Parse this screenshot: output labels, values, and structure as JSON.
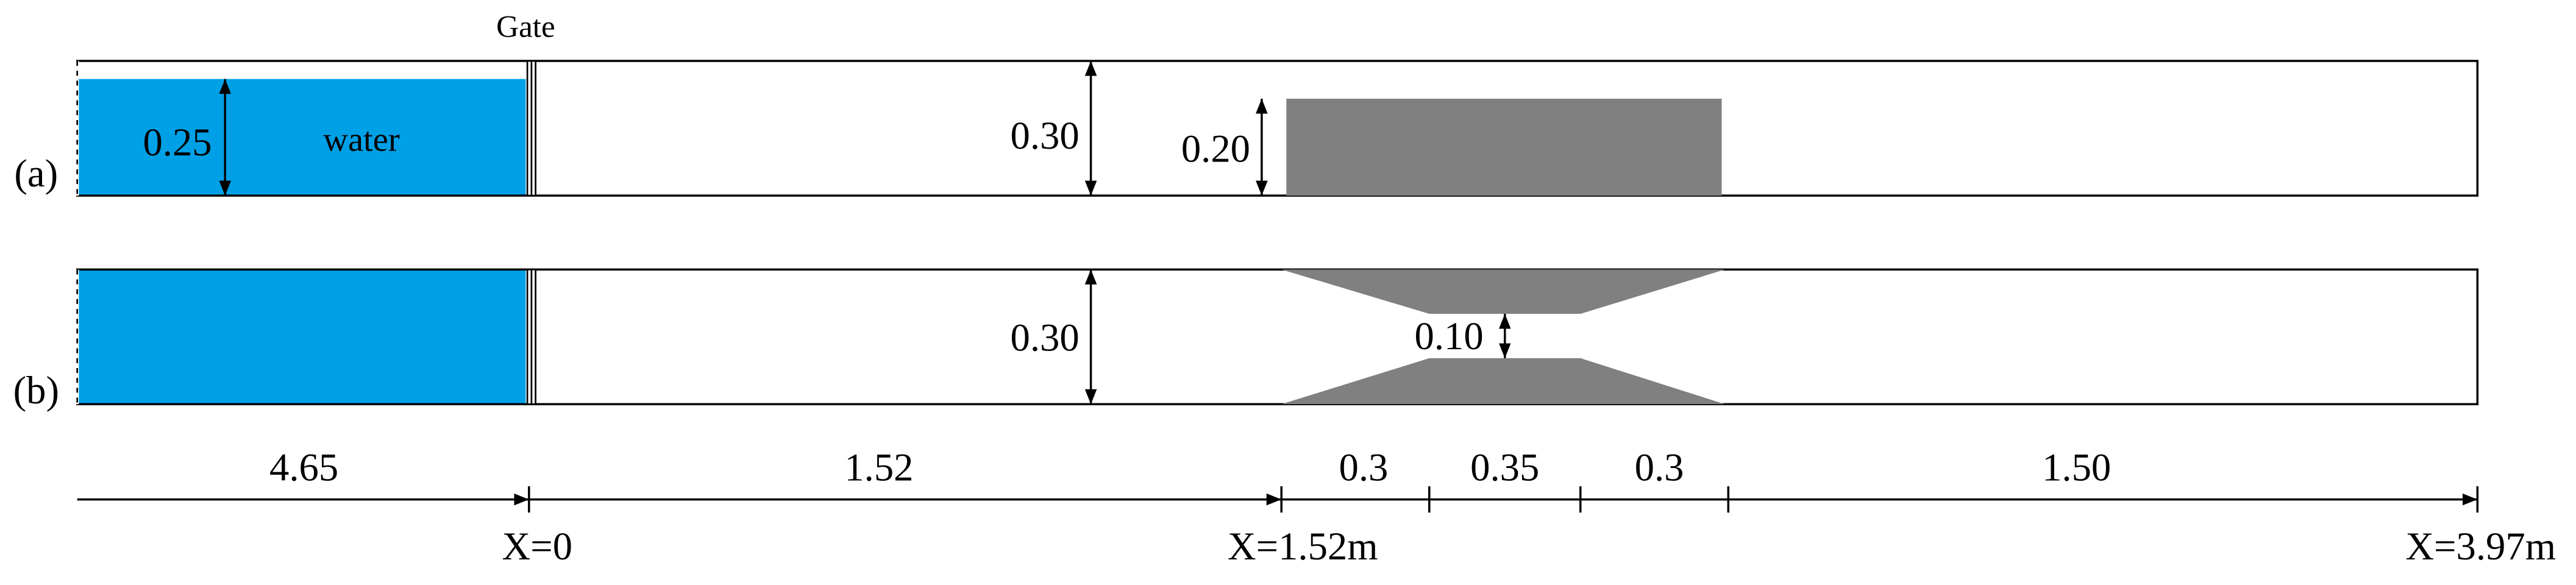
{
  "gate_label": "Gate",
  "panels": [
    {
      "label": "(a)",
      "water_label": "water",
      "water_depth": "0.25",
      "channel_height": "0.30",
      "obstacle_height": "0.20"
    },
    {
      "label": "(b)",
      "channel_height": "0.30",
      "throat_width": "0.10"
    }
  ],
  "segments": [
    "4.65",
    "1.52",
    "0.3",
    "0.35",
    "0.3",
    "1.50"
  ],
  "positions": [
    "X=0",
    "X=1.52m",
    "X=3.97m"
  ]
}
